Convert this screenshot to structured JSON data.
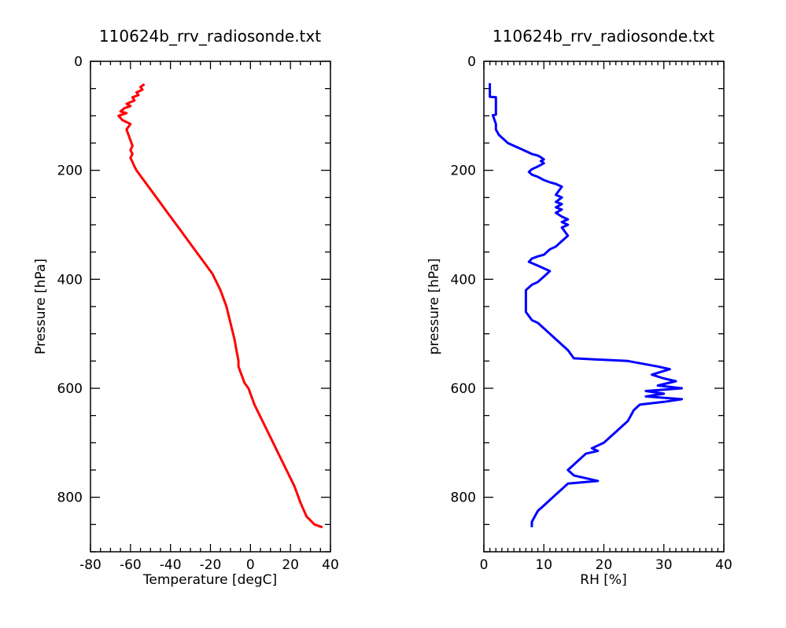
{
  "chart_data": [
    {
      "type": "line",
      "title": "110624b_rrv_radiosonde.txt",
      "xlabel": "Temperature [degC]",
      "ylabel": "Pressure [hPa]",
      "xlim": [
        -80,
        40
      ],
      "ylim": [
        900,
        0
      ],
      "y_inverted": true,
      "xticks": [
        -80,
        -60,
        -40,
        -20,
        0,
        20,
        40
      ],
      "yticks": [
        0,
        200,
        400,
        600,
        800
      ],
      "x_minor_step": 5,
      "y_minor_step": 50,
      "grid": false,
      "color": "#ff0000",
      "series": [
        {
          "x": [
            -53,
            -55,
            -54,
            -57,
            -56,
            -59,
            -58,
            -62,
            -60,
            -63,
            -65,
            -62,
            -66,
            -64,
            -60,
            -62,
            -61,
            -60,
            -59,
            -60,
            -59,
            -60,
            -59,
            -58,
            -57,
            -55,
            -53,
            -51,
            -47,
            -43,
            -39,
            -35,
            -31,
            -27,
            -23,
            -19,
            -15,
            -12,
            -10,
            -8,
            -7,
            -6,
            -6,
            -5,
            -4,
            -3,
            -1,
            2,
            6,
            10,
            14,
            18,
            22,
            25,
            28,
            32,
            36
          ],
          "y": [
            42,
            47,
            52,
            57,
            62,
            66,
            72,
            78,
            82,
            86,
            92,
            95,
            100,
            108,
            115,
            125,
            135,
            145,
            155,
            163,
            170,
            177,
            185,
            193,
            200,
            210,
            220,
            230,
            250,
            270,
            290,
            310,
            330,
            350,
            370,
            390,
            420,
            450,
            480,
            510,
            530,
            550,
            560,
            570,
            580,
            590,
            600,
            630,
            660,
            690,
            720,
            750,
            780,
            810,
            835,
            850,
            855
          ]
        }
      ]
    },
    {
      "type": "line",
      "title": "110624b_rrv_radiosonde.txt",
      "xlabel": "RH [%]",
      "ylabel": "pressure [hPa]",
      "xlim": [
        0,
        40
      ],
      "ylim": [
        900,
        0
      ],
      "y_inverted": true,
      "xticks": [
        0,
        10,
        20,
        30,
        40
      ],
      "yticks": [
        0,
        200,
        400,
        600,
        800
      ],
      "x_minor_step": 1,
      "y_minor_step": 50,
      "grid": false,
      "color": "#0000ff",
      "series": [
        {
          "x": [
            1,
            1,
            2,
            2,
            1.5,
            2,
            2,
            2.5,
            3,
            3.5,
            4,
            5,
            6,
            7,
            8,
            9,
            9.5,
            10,
            9.5,
            10,
            9,
            8,
            7.5,
            8,
            9,
            10,
            11,
            12,
            13,
            12,
            13,
            12,
            13,
            12,
            13,
            12,
            13,
            14,
            13,
            14,
            13,
            14,
            13,
            12,
            11,
            10,
            9,
            8,
            7.5,
            9,
            11,
            10,
            9,
            8,
            7,
            7,
            8,
            9,
            10,
            11,
            12,
            13,
            14,
            15,
            24,
            29,
            31,
            28,
            30,
            32,
            29,
            33,
            27,
            30,
            27,
            33,
            30,
            26,
            25,
            24.5,
            24,
            23,
            22,
            21,
            20,
            19,
            18,
            19,
            17,
            16,
            15,
            14,
            15,
            19,
            14,
            13,
            12,
            11,
            10,
            9,
            8.5,
            8,
            8
          ],
          "y": [
            40,
            65,
            66,
            98,
            99,
            115,
            125,
            135,
            140,
            145,
            150,
            155,
            160,
            165,
            170,
            173,
            176,
            180,
            183,
            187,
            193,
            198,
            203,
            208,
            212,
            218,
            222,
            225,
            230,
            245,
            250,
            258,
            262,
            268,
            272,
            278,
            285,
            290,
            295,
            300,
            305,
            320,
            330,
            340,
            345,
            355,
            358,
            362,
            368,
            375,
            385,
            395,
            405,
            410,
            420,
            460,
            475,
            480,
            490,
            500,
            510,
            520,
            530,
            545,
            550,
            560,
            565,
            575,
            582,
            587,
            595,
            600,
            605,
            610,
            615,
            620,
            625,
            630,
            640,
            650,
            660,
            670,
            680,
            690,
            700,
            705,
            710,
            715,
            720,
            730,
            740,
            750,
            760,
            770,
            775,
            785,
            795,
            805,
            815,
            825,
            835,
            845,
            855
          ]
        }
      ]
    }
  ]
}
